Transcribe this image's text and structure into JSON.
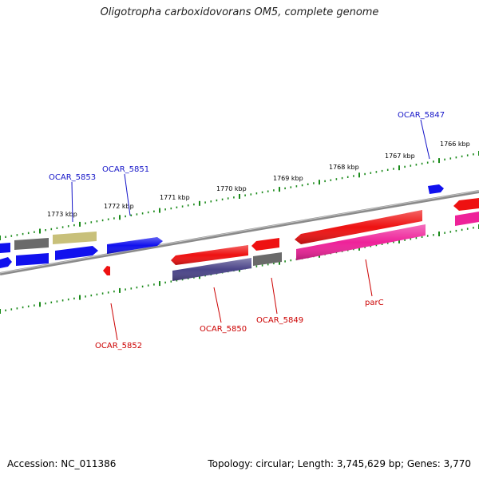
{
  "header": {
    "title": "Oligotropha carboxidovorans OM5, complete genome"
  },
  "footer": {
    "accession": "Accession: NC_011386",
    "summary": "Topology: circular; Length: 3,745,629 bp; Genes: 3,770"
  },
  "colors": {
    "backbone": "#8a8a8a",
    "tick": "#1a8a1a",
    "plus_label": "#1515c8",
    "minus_label": "#cc0000",
    "blue": "#1111ee",
    "red": "#ee1111",
    "grey": "#6a6a6a",
    "khaki": "#c8c07a",
    "purple": "#4a4488",
    "magenta": "#ee2299"
  },
  "map": {
    "ruler_labels": [
      "1766 kbp",
      "1767 kbp",
      "1768 kbp",
      "1769 kbp",
      "1770 kbp",
      "1771 kbp",
      "1772 kbp",
      "1773 kbp"
    ],
    "gene_labels": [
      {
        "id": "OCAR_5847",
        "strand": "plus"
      },
      {
        "id": "OCAR_5851",
        "strand": "plus"
      },
      {
        "id": "OCAR_5853",
        "strand": "plus"
      },
      {
        "id": "OCAR_5852",
        "strand": "minus"
      },
      {
        "id": "OCAR_5850",
        "strand": "minus"
      },
      {
        "id": "OCAR_5849",
        "strand": "minus"
      },
      {
        "id": "parC",
        "strand": "minus"
      }
    ]
  }
}
